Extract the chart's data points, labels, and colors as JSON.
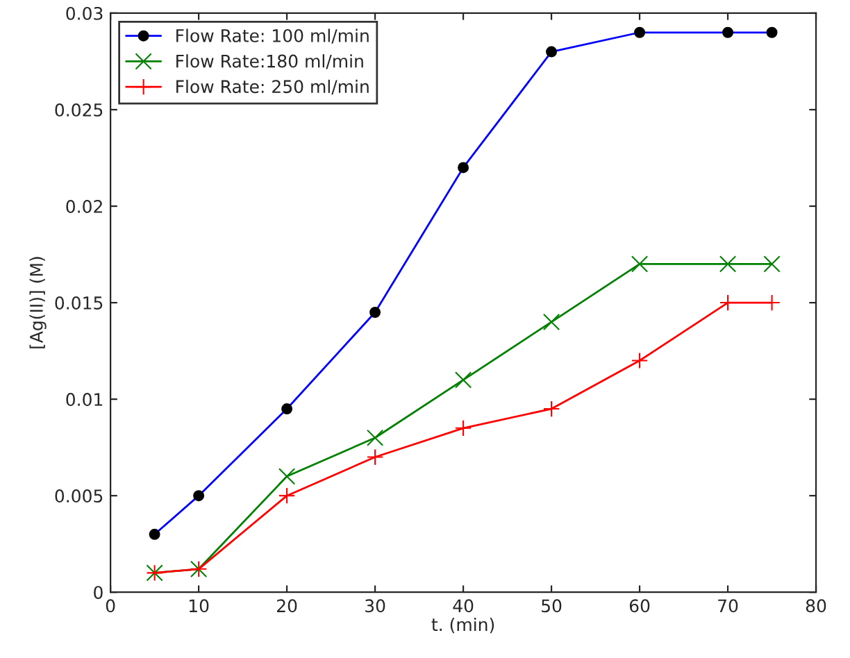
{
  "chart_data": {
    "type": "line",
    "xlabel": "t. (min)",
    "ylabel": "[Ag(II)] (M)",
    "x": [
      5,
      10,
      20,
      30,
      40,
      50,
      60,
      70,
      75
    ],
    "series": [
      {
        "name": "Flow Rate: 100 ml/min",
        "color": "#0000ff",
        "marker": "circle",
        "values": [
          0.003,
          0.005,
          0.0095,
          0.0145,
          0.022,
          0.028,
          0.029,
          0.029,
          0.029
        ]
      },
      {
        "name": "Flow Rate:180 ml/min",
        "color": "#008000",
        "marker": "x",
        "values": [
          0.001,
          0.0012,
          0.006,
          0.008,
          0.011,
          0.014,
          0.017,
          0.017,
          0.017
        ]
      },
      {
        "name": "Flow Rate: 250 ml/min",
        "color": "#ff0000",
        "marker": "cross",
        "values": [
          0.001,
          0.0012,
          0.005,
          0.007,
          0.0085,
          0.0095,
          0.012,
          0.015,
          0.015
        ]
      }
    ],
    "xlim": [
      0,
      80
    ],
    "xticks": [
      0,
      10,
      20,
      30,
      40,
      50,
      60,
      70,
      80
    ],
    "ylim": [
      0,
      0.03
    ],
    "yticks": [
      0,
      0.005,
      0.01,
      0.015,
      0.02,
      0.025,
      0.03
    ],
    "grid": false,
    "legend": "top left",
    "line_style": "solid"
  }
}
